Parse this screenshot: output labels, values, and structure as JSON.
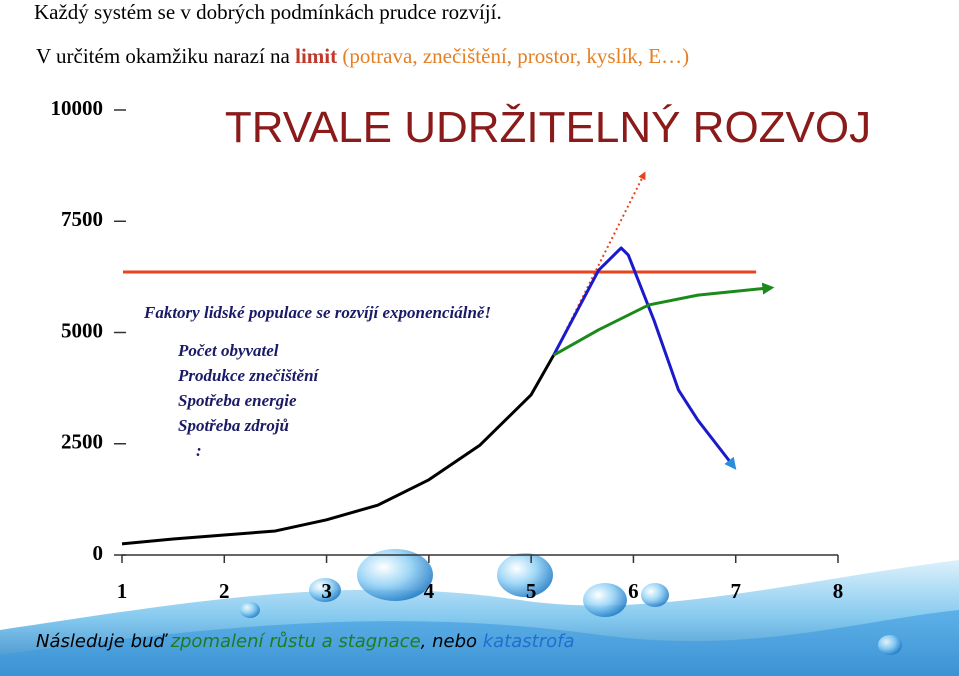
{
  "slide": {
    "line1": "Každý systém se v dobrých podmínkách prudce rozvíjí.",
    "line2": [
      {
        "text": "V určitém okamžiku narazí na ",
        "color": "#000000",
        "bold": false
      },
      {
        "text": "limit",
        "color": "#c0392b",
        "bold": true
      },
      {
        "text": " (potrava, znečištění, prostor, kyslík, E…)",
        "color": "#e67e22",
        "bold": false
      }
    ],
    "note_title": "Faktory lidské populace se rozvíjí exponenciálně!",
    "note_items": [
      "Počet obyvatel",
      "Produkce znečištění",
      "Spotřeba energie",
      "Spotřeba zdrojů",
      ":"
    ],
    "footer": [
      {
        "text": "Následuje buď ",
        "color": "#000000"
      },
      {
        "text": "zpomalení růstu a stagnace",
        "color": "#1e7d1e"
      },
      {
        "text": ", nebo ",
        "color": "#000000"
      },
      {
        "text": "katastrofa",
        "color": "#1f6fd1"
      }
    ]
  },
  "chart_data": {
    "type": "line",
    "title": "TRVALE UDRŽITELNÝ ROZVOJ",
    "xlim": [
      1,
      8
    ],
    "xticks": [
      1,
      2,
      3,
      4,
      5,
      6,
      7,
      8
    ],
    "ylim": [
      0,
      10000
    ],
    "yticks": [
      0,
      2500,
      5000,
      7500,
      10000
    ],
    "series": [
      {
        "color": "#000000",
        "x": [
          1,
          1.5,
          2,
          2.5,
          3,
          3.5,
          4,
          4.5,
          5,
          5.22
        ],
        "values": [
          250,
          360,
          450,
          540,
          790,
          1120,
          1690,
          2470,
          3600,
          4490
        ]
      },
      {
        "color": "#e8431c",
        "x": [
          1.01,
          7.2
        ],
        "values": [
          6360,
          6360
        ]
      },
      {
        "color": "#e8431c",
        "style": "dotted",
        "arrow": true,
        "x": [
          5.22,
          6.1
        ],
        "values": [
          4490,
          8540
        ]
      },
      {
        "color": "#1a1acc",
        "arrow": true,
        "x": [
          5.22,
          5.66,
          5.88,
          5.95,
          6.2,
          6.44,
          6.63,
          6.97
        ],
        "values": [
          4490,
          6400,
          6900,
          6740,
          5280,
          3710,
          3030,
          2020
        ]
      },
      {
        "color": "#1b8a1b",
        "arrow": true,
        "x": [
          5.22,
          5.66,
          6.15,
          6.63,
          7.32
        ],
        "values": [
          4490,
          5060,
          5620,
          5840,
          6000
        ]
      }
    ]
  }
}
